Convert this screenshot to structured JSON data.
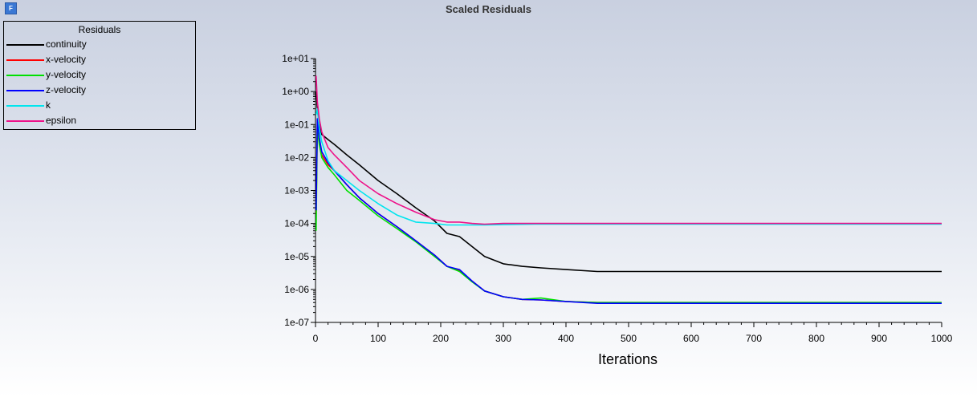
{
  "app": {
    "icon_letter": "F"
  },
  "chart_data": {
    "type": "line",
    "title": "Scaled Residuals",
    "xlabel": "Iterations",
    "ylabel": "",
    "x_scale": "linear",
    "y_scale": "log",
    "xlim": [
      0,
      1000
    ],
    "ylim": [
      1e-07,
      10
    ],
    "x_ticks": [
      "0",
      "100",
      "200",
      "300",
      "400",
      "500",
      "600",
      "700",
      "800",
      "900",
      "1000"
    ],
    "y_ticks": [
      "1e+01",
      "1e+00",
      "1e-01",
      "1e-02",
      "1e-03",
      "1e-04",
      "1e-05",
      "1e-06",
      "1e-07"
    ],
    "grid": false,
    "legend": {
      "title": "Residuals",
      "placement": "top-left",
      "entries": [
        "continuity",
        "x-velocity",
        "y-velocity",
        "z-velocity",
        "k",
        "epsilon"
      ]
    },
    "series": [
      {
        "name": "continuity",
        "color": "#000000",
        "x": [
          1,
          3,
          6,
          10,
          20,
          30,
          50,
          70,
          100,
          130,
          160,
          190,
          210,
          230,
          250,
          270,
          300,
          330,
          360,
          400,
          450,
          500,
          600,
          700,
          800,
          900,
          1000
        ],
        "y": [
          1.0,
          0.3,
          0.1,
          0.05,
          0.035,
          0.025,
          0.012,
          0.006,
          0.002,
          0.0008,
          0.0003,
          0.00012,
          5e-05,
          4e-05,
          2e-05,
          1e-05,
          6e-06,
          5e-06,
          4.5e-06,
          4e-06,
          3.5e-06,
          3.5e-06,
          3.5e-06,
          3.5e-06,
          3.5e-06,
          3.5e-06,
          3.5e-06
        ]
      },
      {
        "name": "x-velocity",
        "color": "#ff0000",
        "x": [
          1,
          3,
          6,
          10,
          20,
          30,
          50,
          70,
          100,
          130,
          160,
          190,
          210,
          230,
          250,
          270,
          300,
          330,
          360,
          400,
          450,
          500,
          600,
          700,
          800,
          900,
          1000
        ],
        "y": [
          0.0002,
          0.1,
          0.03,
          0.012,
          0.006,
          0.004,
          0.0015,
          0.0006,
          0.0002,
          8e-05,
          3e-05,
          1.1e-05,
          5e-06,
          3.8e-06,
          1.8e-06,
          9e-07,
          6e-07,
          5e-07,
          4.8e-07,
          4.3e-07,
          4e-07,
          4e-07,
          4e-07,
          4e-07,
          4e-07,
          4e-07,
          4e-07
        ]
      },
      {
        "name": "y-velocity",
        "color": "#00e000",
        "x": [
          1,
          3,
          6,
          10,
          20,
          30,
          50,
          70,
          100,
          130,
          160,
          190,
          210,
          230,
          250,
          270,
          300,
          330,
          360,
          400,
          450,
          500,
          600,
          700,
          800,
          900,
          1000
        ],
        "y": [
          6e-05,
          0.08,
          0.025,
          0.01,
          0.005,
          0.003,
          0.001,
          0.0005,
          0.00017,
          7e-05,
          2.8e-05,
          1e-05,
          5e-06,
          3.5e-06,
          1.7e-06,
          9e-07,
          6e-07,
          5e-07,
          5.5e-07,
          4.3e-07,
          4e-07,
          4e-07,
          4e-07,
          4e-07,
          4e-07,
          4e-07,
          4e-07
        ]
      },
      {
        "name": "z-velocity",
        "color": "#0000ff",
        "x": [
          1,
          3,
          6,
          10,
          20,
          30,
          50,
          70,
          100,
          130,
          160,
          190,
          210,
          230,
          250,
          270,
          300,
          330,
          360,
          400,
          450,
          500,
          600,
          700,
          800,
          900,
          1000
        ],
        "y": [
          0.00025,
          0.15,
          0.04,
          0.015,
          0.007,
          0.004,
          0.0015,
          0.0006,
          0.0002,
          8e-05,
          3e-05,
          1.1e-05,
          5e-06,
          4e-06,
          1.8e-06,
          9e-07,
          6e-07,
          5e-07,
          4.8e-07,
          4.3e-07,
          3.8e-07,
          3.8e-07,
          3.8e-07,
          3.8e-07,
          3.8e-07,
          3.8e-07,
          3.8e-07
        ]
      },
      {
        "name": "k",
        "color": "#00e5ee",
        "x": [
          1,
          3,
          6,
          10,
          20,
          30,
          50,
          70,
          100,
          130,
          160,
          190,
          210,
          230,
          250,
          270,
          300,
          350,
          400,
          500,
          600,
          700,
          800,
          900,
          1000
        ],
        "y": [
          0.2,
          0.3,
          0.08,
          0.03,
          0.008,
          0.004,
          0.002,
          0.001,
          0.0004,
          0.00018,
          0.00011,
          0.0001,
          9e-05,
          9e-05,
          9e-05,
          9e-05,
          9.2e-05,
          9.5e-05,
          9.5e-05,
          9.5e-05,
          9.5e-05,
          9.5e-05,
          9.5e-05,
          9.5e-05,
          9.5e-05
        ]
      },
      {
        "name": "epsilon",
        "color": "#ee1289",
        "x": [
          1,
          3,
          6,
          10,
          20,
          30,
          50,
          70,
          100,
          130,
          160,
          190,
          210,
          230,
          250,
          270,
          300,
          350,
          400,
          500,
          600,
          700,
          800,
          900,
          1000
        ],
        "y": [
          3.0,
          0.5,
          0.15,
          0.06,
          0.02,
          0.012,
          0.005,
          0.002,
          0.0008,
          0.0004,
          0.00022,
          0.00013,
          0.00011,
          0.00011,
          0.0001,
          9.5e-05,
          0.0001,
          0.0001,
          0.0001,
          0.0001,
          0.0001,
          0.0001,
          0.0001,
          0.0001,
          0.0001
        ]
      }
    ]
  }
}
